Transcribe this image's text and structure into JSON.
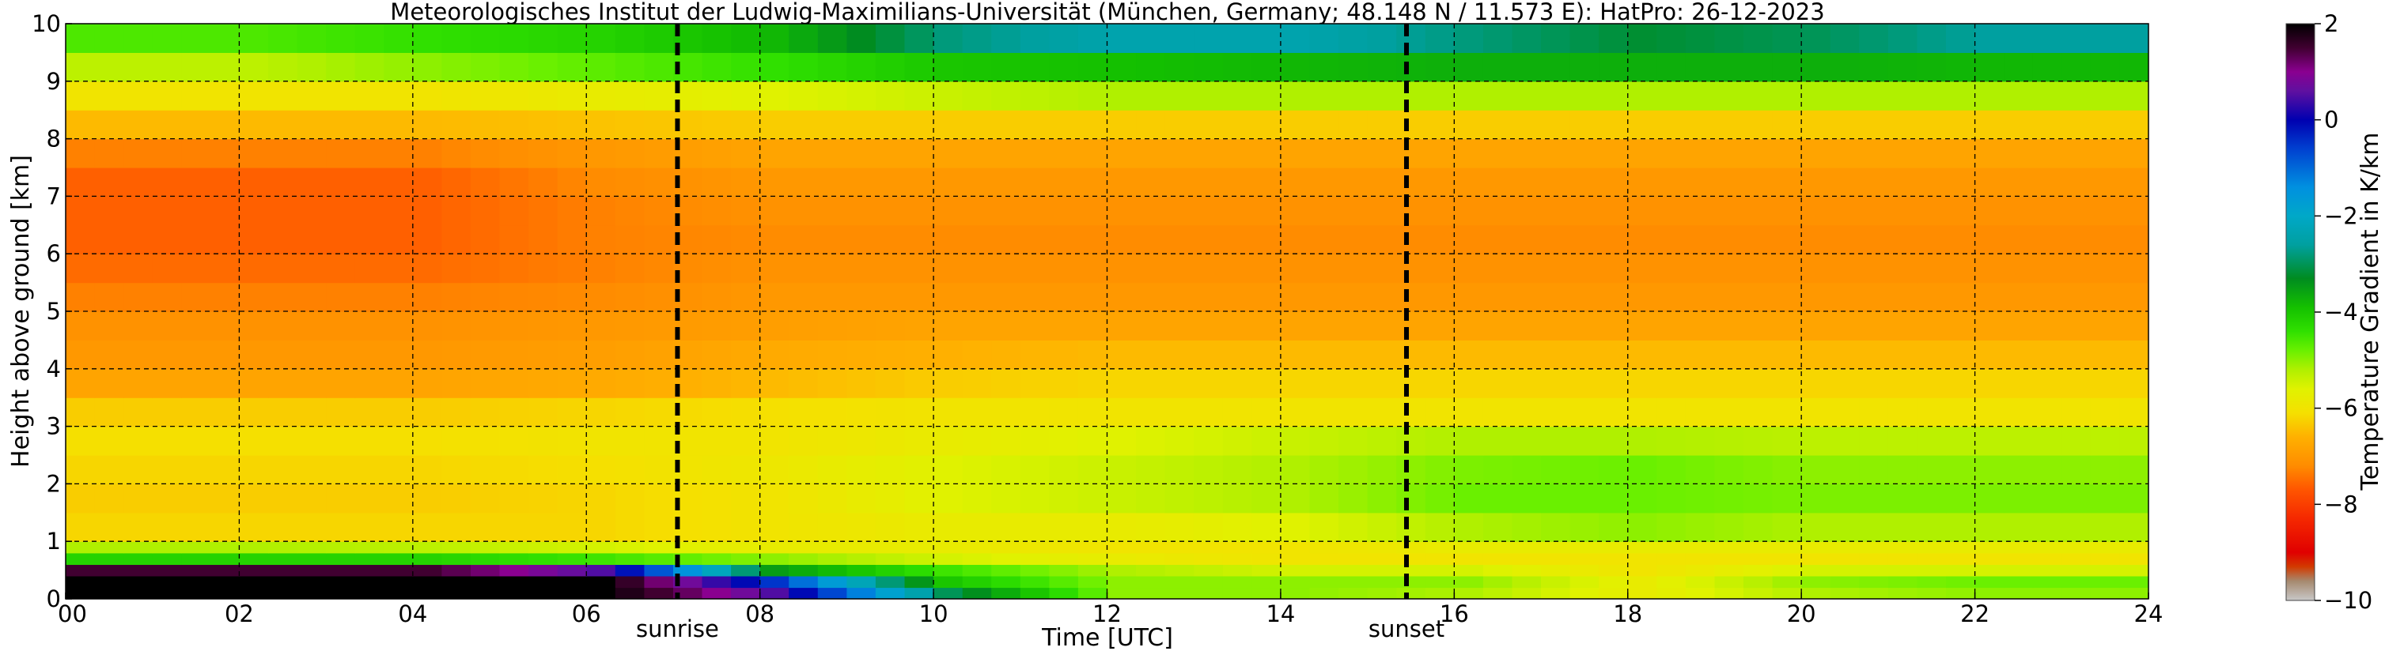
{
  "chart_data": {
    "type": "heatmap",
    "title": "Meteorologisches Institut der Ludwig-Maximilians-Universität (München, Germany; 48.148 N / 11.573 E):    HatPro: 26-12-2023",
    "xlabel": "Time [UTC]",
    "ylabel": "Height above ground [km]",
    "xlim": [
      0,
      24
    ],
    "ylim": [
      0,
      10
    ],
    "x_ticks": [
      {
        "value": 0,
        "label": "00"
      },
      {
        "value": 2,
        "label": "02"
      },
      {
        "value": 4,
        "label": "04"
      },
      {
        "value": 6,
        "label": "06"
      },
      {
        "value": 8,
        "label": "08"
      },
      {
        "value": 10,
        "label": "10"
      },
      {
        "value": 12,
        "label": "12"
      },
      {
        "value": 14,
        "label": "14"
      },
      {
        "value": 16,
        "label": "16"
      },
      {
        "value": 18,
        "label": "18"
      },
      {
        "value": 20,
        "label": "20"
      },
      {
        "value": 22,
        "label": "22"
      },
      {
        "value": 24,
        "label": "24"
      }
    ],
    "y_ticks": [
      {
        "value": 0,
        "label": "0"
      },
      {
        "value": 1,
        "label": "1"
      },
      {
        "value": 2,
        "label": "2"
      },
      {
        "value": 3,
        "label": "3"
      },
      {
        "value": 4,
        "label": "4"
      },
      {
        "value": 5,
        "label": "5"
      },
      {
        "value": 6,
        "label": "6"
      },
      {
        "value": 7,
        "label": "7"
      },
      {
        "value": 8,
        "label": "8"
      },
      {
        "value": 9,
        "label": "9"
      },
      {
        "value": 10,
        "label": "10"
      }
    ],
    "grid": true,
    "markers": [
      {
        "name": "sunrise",
        "label": "sunrise",
        "x": 7.05
      },
      {
        "name": "sunset",
        "label": "sunset",
        "x": 15.45
      }
    ],
    "colorbar": {
      "label": "Temperature Gradient in K/km",
      "range": [
        -10,
        2
      ],
      "ticks": [
        {
          "value": 2,
          "label": "2"
        },
        {
          "value": 0,
          "label": "0"
        },
        {
          "value": -2,
          "label": "−2"
        },
        {
          "value": -4,
          "label": "−4"
        },
        {
          "value": -6,
          "label": "−6"
        },
        {
          "value": -8,
          "label": "−8"
        },
        {
          "value": -10,
          "label": "−10"
        }
      ],
      "color_stops": [
        {
          "value": -10.0,
          "color": "#c8c8c8"
        },
        {
          "value": -9.6,
          "color": "#a68a70"
        },
        {
          "value": -9.3,
          "color": "#d23a00"
        },
        {
          "value": -9.0,
          "color": "#e00000"
        },
        {
          "value": -8.3,
          "color": "#f52800"
        },
        {
          "value": -7.7,
          "color": "#ff5500"
        },
        {
          "value": -7.2,
          "color": "#ff8c00"
        },
        {
          "value": -6.6,
          "color": "#ffb000"
        },
        {
          "value": -6.1,
          "color": "#f5e000"
        },
        {
          "value": -5.6,
          "color": "#e0f200"
        },
        {
          "value": -5.2,
          "color": "#b0f000"
        },
        {
          "value": -4.8,
          "color": "#6af000"
        },
        {
          "value": -4.4,
          "color": "#30e000"
        },
        {
          "value": -3.9,
          "color": "#14c000"
        },
        {
          "value": -3.3,
          "color": "#008c20"
        },
        {
          "value": -2.6,
          "color": "#00a0a0"
        },
        {
          "value": -2.0,
          "color": "#00a8c8"
        },
        {
          "value": -1.4,
          "color": "#0090e0"
        },
        {
          "value": -0.6,
          "color": "#0040d0"
        },
        {
          "value": 0.0,
          "color": "#0000b0"
        },
        {
          "value": 0.6,
          "color": "#6010a0"
        },
        {
          "value": 1.0,
          "color": "#8a0090"
        },
        {
          "value": 1.5,
          "color": "#400030"
        },
        {
          "value": 2.0,
          "color": "#000000"
        }
      ]
    },
    "cell_heights_km": [
      0.2,
      0.4,
      0.6,
      0.8,
      1.0,
      1.5,
      2.0,
      2.5,
      3.0,
      3.5,
      4.0,
      4.5,
      5.0,
      5.5,
      6.0,
      6.5,
      7.0,
      7.5,
      8.0,
      8.5,
      9.0,
      9.5,
      10.0
    ],
    "time_utc": [
      0,
      2,
      4,
      6,
      8,
      10,
      12,
      14,
      16,
      18,
      20,
      22,
      24
    ],
    "gradient_K_per_km": [
      [
        2.0,
        2.0,
        2.0,
        2.0,
        0.5,
        -3.0,
        -5.0,
        -5.0,
        -5.2,
        -5.8,
        -5.2,
        -5.0,
        -5.0
      ],
      [
        2.0,
        2.0,
        2.0,
        2.0,
        -0.5,
        -4.0,
        -5.0,
        -5.0,
        -5.0,
        -5.8,
        -5.0,
        -4.8,
        -4.8
      ],
      [
        1.5,
        1.5,
        1.5,
        0.5,
        -3.5,
        -4.5,
        -5.2,
        -5.5,
        -5.5,
        -6.0,
        -5.5,
        -5.5,
        -5.5
      ],
      [
        -4.2,
        -4.2,
        -4.2,
        -4.5,
        -5.0,
        -5.5,
        -5.8,
        -6.0,
        -6.0,
        -6.0,
        -6.0,
        -6.0,
        -6.0
      ],
      [
        -5.2,
        -5.2,
        -5.3,
        -5.5,
        -5.8,
        -5.8,
        -6.0,
        -6.0,
        -5.8,
        -5.8,
        -5.8,
        -5.8,
        -5.8
      ],
      [
        -6.2,
        -6.2,
        -6.2,
        -6.2,
        -6.0,
        -5.8,
        -5.8,
        -5.6,
        -5.2,
        -5.0,
        -5.2,
        -5.2,
        -5.2
      ],
      [
        -6.3,
        -6.3,
        -6.3,
        -6.2,
        -6.0,
        -5.6,
        -5.4,
        -5.2,
        -4.8,
        -4.8,
        -4.9,
        -4.9,
        -4.9
      ],
      [
        -6.2,
        -6.2,
        -6.2,
        -6.1,
        -5.9,
        -5.6,
        -5.4,
        -5.2,
        -4.9,
        -4.8,
        -5.0,
        -5.0,
        -5.0
      ],
      [
        -6.1,
        -6.1,
        -6.1,
        -6.0,
        -6.0,
        -5.8,
        -5.6,
        -5.4,
        -5.2,
        -5.2,
        -5.3,
        -5.3,
        -5.3
      ],
      [
        -6.3,
        -6.3,
        -6.3,
        -6.2,
        -6.1,
        -6.0,
        -6.0,
        -6.0,
        -6.0,
        -6.0,
        -6.0,
        -6.0,
        -6.0
      ],
      [
        -6.8,
        -6.8,
        -6.8,
        -6.7,
        -6.5,
        -6.3,
        -6.2,
        -6.2,
        -6.2,
        -6.2,
        -6.2,
        -6.2,
        -6.2
      ],
      [
        -7.0,
        -7.0,
        -7.0,
        -6.9,
        -6.7,
        -6.6,
        -6.5,
        -6.5,
        -6.5,
        -6.5,
        -6.5,
        -6.5,
        -6.5
      ],
      [
        -7.1,
        -7.1,
        -7.1,
        -7.0,
        -6.9,
        -6.8,
        -6.8,
        -6.8,
        -6.8,
        -6.8,
        -6.8,
        -6.8,
        -6.8
      ],
      [
        -7.3,
        -7.3,
        -7.3,
        -7.2,
        -7.0,
        -7.0,
        -7.0,
        -7.0,
        -7.0,
        -7.0,
        -7.0,
        -7.0,
        -7.0
      ],
      [
        -7.5,
        -7.5,
        -7.5,
        -7.3,
        -7.1,
        -7.1,
        -7.1,
        -7.1,
        -7.1,
        -7.1,
        -7.1,
        -7.1,
        -7.1
      ],
      [
        -7.6,
        -7.6,
        -7.6,
        -7.3,
        -7.2,
        -7.2,
        -7.2,
        -7.2,
        -7.2,
        -7.2,
        -7.2,
        -7.2,
        -7.2
      ],
      [
        -7.6,
        -7.6,
        -7.6,
        -7.3,
        -7.1,
        -7.1,
        -7.1,
        -7.1,
        -7.1,
        -7.1,
        -7.1,
        -7.1,
        -7.1
      ],
      [
        -7.6,
        -7.6,
        -7.6,
        -7.2,
        -7.0,
        -7.0,
        -7.0,
        -7.0,
        -7.0,
        -7.0,
        -7.0,
        -7.0,
        -7.0
      ],
      [
        -7.3,
        -7.3,
        -7.3,
        -7.0,
        -6.8,
        -6.8,
        -6.8,
        -6.8,
        -6.8,
        -6.8,
        -6.8,
        -6.8,
        -6.8
      ],
      [
        -6.5,
        -6.5,
        -6.5,
        -6.4,
        -6.3,
        -6.3,
        -6.3,
        -6.3,
        -6.3,
        -6.3,
        -6.3,
        -6.3,
        -6.3
      ],
      [
        -6.0,
        -6.0,
        -6.0,
        -5.8,
        -5.6,
        -5.4,
        -5.2,
        -5.2,
        -5.2,
        -5.2,
        -5.2,
        -5.2,
        -5.2
      ],
      [
        -5.3,
        -5.3,
        -5.0,
        -4.7,
        -4.4,
        -4.0,
        -3.9,
        -3.8,
        -3.7,
        -3.7,
        -3.7,
        -3.8,
        -3.8
      ],
      [
        -4.6,
        -4.6,
        -4.4,
        -4.2,
        -3.8,
        -2.8,
        -2.4,
        -2.4,
        -2.8,
        -3.2,
        -3.0,
        -2.6,
        -2.6
      ]
    ]
  }
}
